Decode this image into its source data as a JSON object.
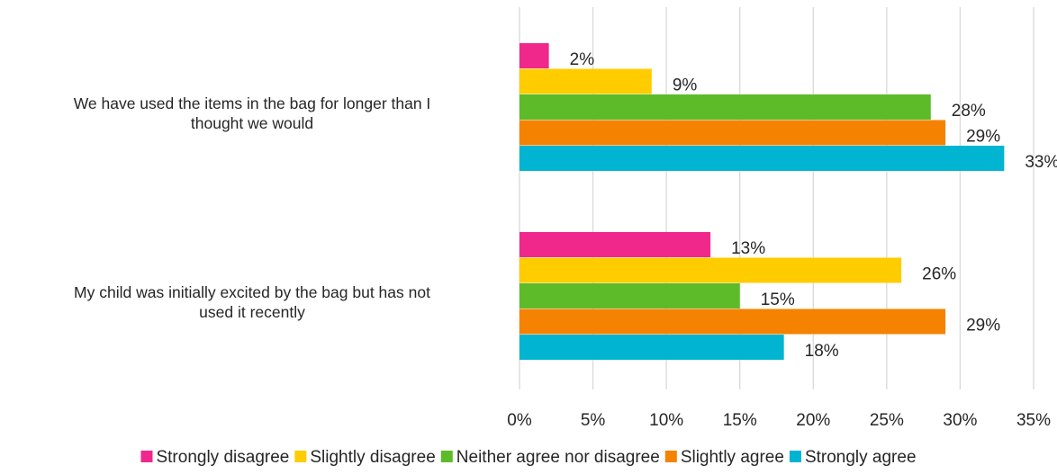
{
  "chart_data": {
    "type": "bar",
    "orientation": "horizontal",
    "title": "",
    "xlabel": "",
    "ylabel": "",
    "xlim": [
      0,
      35
    ],
    "x_ticks": [
      {
        "value": 0,
        "label": "0%"
      },
      {
        "value": 5,
        "label": "5%"
      },
      {
        "value": 10,
        "label": "10%"
      },
      {
        "value": 15,
        "label": "15%"
      },
      {
        "value": 20,
        "label": "20%"
      },
      {
        "value": 25,
        "label": "25%"
      },
      {
        "value": 30,
        "label": "30%"
      },
      {
        "value": 35,
        "label": "35%"
      }
    ],
    "grid": "vertical",
    "legend_position": "bottom",
    "categories": [
      [
        "We have used the items in the bag for longer than I",
        "thought we would"
      ],
      [
        "My child was initially excited by the bag but has not",
        "used it recently"
      ]
    ],
    "series": [
      {
        "name": "Strongly disagree",
        "color": "#F0288C",
        "values": [
          2,
          13
        ],
        "labels": [
          "2%",
          "13%"
        ]
      },
      {
        "name": "Slightly disagree",
        "color": "#FFCC00",
        "values": [
          9,
          26
        ],
        "labels": [
          "9%",
          "26%"
        ]
      },
      {
        "name": "Neither agree nor disagree",
        "color": "#5DBB2A",
        "values": [
          28,
          15
        ],
        "labels": [
          "28%",
          "15%"
        ]
      },
      {
        "name": "Slightly agree",
        "color": "#F58200",
        "values": [
          29,
          29
        ],
        "labels": [
          "29%",
          "29%"
        ]
      },
      {
        "name": "Strongly agree",
        "color": "#00B4D2",
        "values": [
          33,
          18
        ],
        "labels": [
          "33%",
          "18%"
        ]
      }
    ]
  }
}
